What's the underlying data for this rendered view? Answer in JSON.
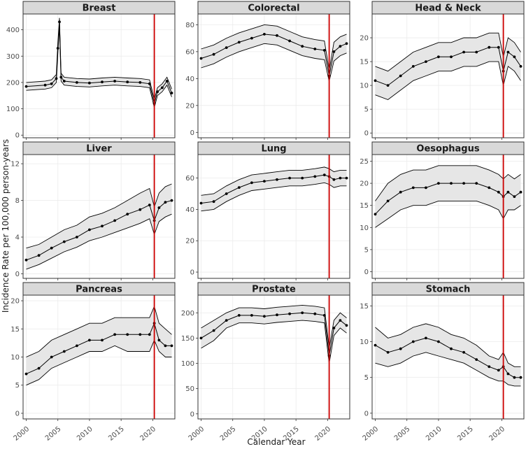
{
  "chart_data": {
    "type": "line",
    "xlabel": "Calendar Year",
    "ylabel": "Incidence Rate per 100,000 person-years",
    "x_ticks": [
      2000,
      2005,
      2010,
      2015,
      2020
    ],
    "xlim": [
      1999.5,
      2023.5
    ],
    "marker_year": 2020.25,
    "colors": {
      "line": "#000000",
      "band": "#e6e6e6",
      "marker": "#cc0000",
      "strip": "#d9d9d9",
      "panel_border": "#333333",
      "grid": "#ebebeb"
    },
    "panels": [
      {
        "name": "Breast",
        "ylim": [
          -10,
          460
        ],
        "y_ticks": [
          0,
          100,
          200,
          300,
          400
        ],
        "series": {
          "x": [
            2000,
            2003,
            2004,
            2004.75,
            2005,
            2005.25,
            2005.5,
            2006,
            2008,
            2010,
            2012,
            2014,
            2016,
            2018,
            2019.5,
            2020.25,
            2020.75,
            2021.5,
            2022.25,
            2023
          ],
          "y": [
            185,
            190,
            195,
            215,
            330,
            430,
            220,
            205,
            200,
            198,
            202,
            205,
            202,
            200,
            195,
            120,
            165,
            180,
            205,
            160
          ],
          "lower": [
            170,
            175,
            180,
            200,
            310,
            410,
            205,
            190,
            185,
            183,
            187,
            190,
            187,
            185,
            180,
            105,
            150,
            165,
            190,
            145
          ],
          "upper": [
            200,
            205,
            210,
            230,
            350,
            445,
            235,
            220,
            215,
            213,
            217,
            220,
            217,
            215,
            210,
            135,
            180,
            195,
            220,
            175
          ]
        }
      },
      {
        "name": "Colorectal",
        "ylim": [
          -4,
          88
        ],
        "y_ticks": [
          0,
          20,
          40,
          60,
          80
        ],
        "series": {
          "x": [
            2000,
            2002,
            2004,
            2006,
            2008,
            2010,
            2012,
            2014,
            2016,
            2018,
            2019.5,
            2020.25,
            2021,
            2022,
            2023
          ],
          "y": [
            55,
            58,
            63,
            67,
            70,
            73,
            72,
            68,
            64,
            62,
            61,
            42,
            60,
            64,
            66
          ],
          "lower": [
            48,
            51,
            56,
            60,
            63,
            66,
            65,
            61,
            57,
            55,
            54,
            38,
            53,
            57,
            59
          ],
          "upper": [
            62,
            65,
            70,
            74,
            77,
            80,
            79,
            75,
            71,
            69,
            68,
            46,
            67,
            71,
            73
          ]
        }
      },
      {
        "name": "Head & Neck",
        "ylim": [
          -1,
          25
        ],
        "y_ticks": [
          0,
          5,
          10,
          15,
          20
        ],
        "series": {
          "x": [
            2000,
            2002,
            2004,
            2006,
            2008,
            2010,
            2012,
            2014,
            2016,
            2018,
            2019.5,
            2020.25,
            2021,
            2022,
            2023
          ],
          "y": [
            11,
            10,
            12,
            14,
            15,
            16,
            16,
            17,
            17,
            18,
            18,
            13,
            17,
            16,
            14
          ],
          "lower": [
            8,
            7,
            9,
            11,
            12,
            13,
            13,
            14,
            14,
            15,
            15,
            10,
            14,
            13,
            11
          ],
          "upper": [
            14,
            13,
            15,
            17,
            18,
            19,
            19,
            20,
            20,
            21,
            21,
            16,
            20,
            19,
            17
          ]
        }
      },
      {
        "name": "Liver",
        "ylim": [
          -0.5,
          13
        ],
        "y_ticks": [
          0,
          4,
          8,
          12
        ],
        "series": {
          "x": [
            2000,
            2002,
            2004,
            2006,
            2008,
            2010,
            2012,
            2014,
            2016,
            2018,
            2019.5,
            2020.25,
            2021,
            2022,
            2023
          ],
          "y": [
            1.5,
            2.0,
            2.8,
            3.5,
            4.0,
            4.8,
            5.2,
            5.8,
            6.5,
            7.0,
            7.5,
            5.8,
            7.2,
            7.8,
            8.0
          ],
          "lower": [
            0.5,
            1.0,
            1.7,
            2.4,
            2.9,
            3.6,
            4.0,
            4.5,
            5.0,
            5.5,
            6.0,
            4.3,
            5.7,
            6.2,
            6.5
          ],
          "upper": [
            2.8,
            3.2,
            4.0,
            4.8,
            5.3,
            6.2,
            6.6,
            7.2,
            8.0,
            8.8,
            9.3,
            7.3,
            8.8,
            9.5,
            9.8
          ]
        }
      },
      {
        "name": "Lung",
        "ylim": [
          -4,
          75
        ],
        "y_ticks": [
          0,
          20,
          40,
          60
        ],
        "series": {
          "x": [
            2000,
            2002,
            2004,
            2006,
            2008,
            2010,
            2012,
            2014,
            2016,
            2018,
            2019.5,
            2020.25,
            2021,
            2022,
            2023
          ],
          "y": [
            44,
            45,
            50,
            54,
            57,
            58,
            59,
            60,
            60,
            61,
            62,
            61,
            59,
            60,
            60
          ],
          "lower": [
            39,
            40,
            45,
            49,
            52,
            53,
            54,
            55,
            55,
            56,
            57,
            56,
            54,
            55,
            55
          ],
          "upper": [
            49,
            50,
            55,
            59,
            62,
            63,
            64,
            65,
            65,
            66,
            67,
            66,
            64,
            65,
            65
          ]
        }
      },
      {
        "name": "Oesophagus",
        "ylim": [
          -1.5,
          26.5
        ],
        "y_ticks": [
          0,
          5,
          10,
          15,
          20,
          25
        ],
        "series": {
          "x": [
            2000,
            2002,
            2004,
            2006,
            2008,
            2010,
            2012,
            2014,
            2016,
            2018,
            2019.5,
            2020.25,
            2021,
            2022,
            2023
          ],
          "y": [
            13,
            16,
            18,
            19,
            19,
            20,
            20,
            20,
            20,
            19,
            18,
            17,
            18,
            17,
            18
          ],
          "lower": [
            10,
            12,
            14,
            15,
            15,
            16,
            16,
            16,
            16,
            15,
            14,
            12,
            14,
            14,
            15
          ],
          "upper": [
            16,
            20,
            22,
            23,
            23,
            24,
            24,
            24,
            24,
            23,
            22,
            21,
            22,
            21,
            22
          ]
        }
      },
      {
        "name": "Pancreas",
        "ylim": [
          -1,
          21
        ],
        "y_ticks": [
          0,
          5,
          10,
          15,
          20
        ],
        "series": {
          "x": [
            2000,
            2002,
            2004,
            2006,
            2008,
            2010,
            2012,
            2014,
            2016,
            2018,
            2019.5,
            2020.25,
            2021,
            2022,
            2023
          ],
          "y": [
            7,
            8,
            10,
            11,
            12,
            13,
            13,
            14,
            14,
            14,
            14,
            16,
            13,
            12,
            12
          ],
          "lower": [
            5,
            6,
            8,
            9,
            10,
            11,
            11,
            12,
            11,
            11,
            11,
            13,
            11,
            10,
            10
          ],
          "upper": [
            10,
            11,
            13,
            14,
            15,
            16,
            16,
            17,
            17,
            17,
            17,
            19,
            16,
            15,
            14
          ]
        }
      },
      {
        "name": "Prostate",
        "ylim": [
          -10,
          235
        ],
        "y_ticks": [
          0,
          50,
          100,
          150,
          200
        ],
        "series": {
          "x": [
            2000,
            2002,
            2004,
            2006,
            2008,
            2010,
            2012,
            2014,
            2016,
            2018,
            2019.5,
            2020.25,
            2021,
            2022,
            2023
          ],
          "y": [
            150,
            165,
            185,
            195,
            195,
            193,
            196,
            198,
            200,
            198,
            195,
            115,
            170,
            185,
            175
          ],
          "lower": [
            130,
            145,
            170,
            180,
            180,
            178,
            181,
            183,
            185,
            183,
            180,
            100,
            155,
            170,
            160
          ],
          "upper": [
            170,
            185,
            200,
            210,
            210,
            208,
            211,
            213,
            215,
            213,
            210,
            130,
            185,
            200,
            190
          ]
        }
      },
      {
        "name": "Stomach",
        "ylim": [
          -0.8,
          16.5
        ],
        "y_ticks": [
          0,
          5,
          10,
          15
        ],
        "series": {
          "x": [
            2000,
            2002,
            2004,
            2006,
            2008,
            2010,
            2012,
            2014,
            2016,
            2018,
            2019.5,
            2020.25,
            2021,
            2022,
            2023
          ],
          "y": [
            9.5,
            8.5,
            9.0,
            10.0,
            10.5,
            10.0,
            9.0,
            8.5,
            7.5,
            6.5,
            6.0,
            6.5,
            5.5,
            5.0,
            5.0
          ],
          "lower": [
            7.0,
            6.5,
            7.0,
            8.0,
            8.5,
            8.0,
            7.5,
            7.0,
            6.0,
            5.0,
            4.5,
            4.5,
            4.0,
            3.8,
            3.8
          ],
          "upper": [
            12.0,
            10.5,
            11.0,
            12.0,
            12.5,
            12.0,
            11.0,
            10.5,
            9.5,
            8.0,
            7.5,
            8.5,
            7.0,
            6.5,
            6.5
          ]
        }
      }
    ]
  }
}
